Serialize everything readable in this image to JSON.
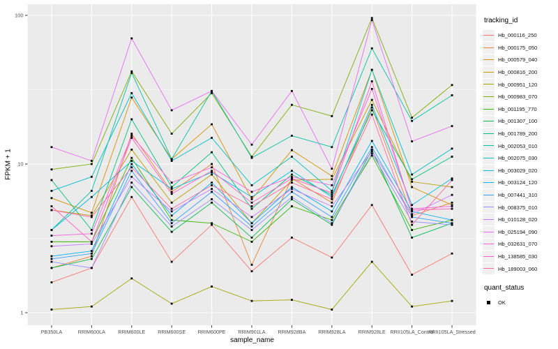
{
  "figure": {
    "background": "#ffffff",
    "panel_bg": "#ebebeb",
    "grid_color": "#ffffff",
    "tick_text_color": "#4d4d4d",
    "tick_mark_color": "#333333",
    "point_color": "#000000"
  },
  "axes": {
    "x_title": "sample_name",
    "y_title": "FPKM + 1",
    "y_tick_labels": [
      "1",
      "10",
      "100"
    ]
  },
  "legend": {
    "tracking_title": "tracking_id",
    "quant_title": "quant_status",
    "quant_items": [
      {
        "label": "OK",
        "shape": "square",
        "color": "#000000"
      }
    ]
  },
  "chart_data": {
    "type": "line",
    "title": "",
    "xlabel": "sample_name",
    "ylabel": "FPKM + 1",
    "yscale": "log10",
    "ylim": [
      0.95,
      120
    ],
    "yticks": [
      1,
      10,
      100
    ],
    "minor_gridlines": [
      3.1623,
      31.623
    ],
    "grid": true,
    "legend_position": "right",
    "point_marker": "black-square",
    "categories": [
      "PB350LA",
      "RRIM600LA",
      "RRIM600LE",
      "RRIM600SE",
      "RRIM600PE",
      "RRIM901LA",
      "RRIM928BA",
      "RRIM928LA",
      "RRIM928LE",
      "RRII105LA_Control",
      "RRII105LA_Stressed"
    ],
    "series": [
      {
        "name": "Hb_000116_250",
        "color": "#F8766D",
        "values": [
          1.6,
          2.0,
          6.0,
          2.2,
          3.9,
          1.9,
          3.2,
          2.35,
          5.3,
          1.8,
          2.5
        ]
      },
      {
        "name": "Hb_000175_050",
        "color": "#EA8331",
        "values": [
          2.0,
          2.4,
          16.0,
          6.5,
          10.0,
          2.1,
          8.0,
          5.5,
          24.0,
          4.5,
          5.5
        ]
      },
      {
        "name": "Hb_000579_040",
        "color": "#D89000",
        "values": [
          5.9,
          4.7,
          28.0,
          10.8,
          18.5,
          5.8,
          12.4,
          8.3,
          43.0,
          7.0,
          5.3
        ]
      },
      {
        "name": "Hb_000816_200",
        "color": "#C09B00",
        "values": [
          4.9,
          4.5,
          12.5,
          5.5,
          8.5,
          4.0,
          7.8,
          7.9,
          27.0,
          7.6,
          7.0
        ]
      },
      {
        "name": "Hb_000951_120",
        "color": "#A3A500",
        "values": [
          1.05,
          1.1,
          1.7,
          1.15,
          1.5,
          1.2,
          1.22,
          1.05,
          2.2,
          1.1,
          1.2
        ]
      },
      {
        "name": "Hb_000983_070",
        "color": "#7CAE00",
        "values": [
          9.2,
          10.0,
          42.0,
          16.0,
          30.0,
          11.2,
          25.0,
          21.0,
          96.0,
          20.5,
          34.0
        ]
      },
      {
        "name": "Hb_001195_770",
        "color": "#39B600",
        "values": [
          3.0,
          3.0,
          11.0,
          4.2,
          4.0,
          3.0,
          5.2,
          4.2,
          11.4,
          3.6,
          4.2
        ]
      },
      {
        "name": "Hb_001307_100",
        "color": "#00BB4E",
        "values": [
          2.0,
          2.3,
          7.0,
          3.5,
          5.5,
          3.2,
          5.8,
          3.9,
          12.5,
          3.2,
          4.0
        ]
      },
      {
        "name": "Hb_001789_200",
        "color": "#00BF7D",
        "values": [
          7.8,
          3.6,
          20.0,
          7.0,
          12.0,
          5.0,
          8.5,
          6.2,
          23.0,
          7.9,
          11.2
        ]
      },
      {
        "name": "Hb_002053_010",
        "color": "#00C1A3",
        "values": [
          3.6,
          6.6,
          41.0,
          10.8,
          31.0,
          11.0,
          15.5,
          13.0,
          60.0,
          19.5,
          29.0
        ]
      },
      {
        "name": "Hb_002075_030",
        "color": "#00BFC4",
        "values": [
          6.6,
          8.2,
          30.0,
          10.5,
          15.0,
          7.2,
          11.2,
          6.6,
          43.0,
          8.5,
          12.7
        ]
      },
      {
        "name": "Hb_003029_020",
        "color": "#00BAE0",
        "values": [
          3.6,
          6.0,
          10.5,
          6.8,
          8.8,
          6.0,
          9.0,
          6.0,
          25.0,
          5.3,
          8.0
        ]
      },
      {
        "name": "Hb_003124_120",
        "color": "#00B0F6",
        "values": [
          2.4,
          2.6,
          10.0,
          4.5,
          7.5,
          4.0,
          7.0,
          4.8,
          14.3,
          4.8,
          4.2
        ]
      },
      {
        "name": "Hb_007441_310",
        "color": "#35A2FF",
        "values": [
          2.3,
          2.5,
          9.0,
          4.0,
          6.5,
          3.8,
          6.5,
          4.4,
          13.0,
          4.4,
          4.0
        ]
      },
      {
        "name": "Hb_008375_010",
        "color": "#9590FF",
        "values": [
          2.2,
          2.0,
          7.5,
          3.8,
          5.8,
          3.6,
          6.0,
          4.0,
          11.8,
          4.1,
          3.9
        ]
      },
      {
        "name": "Hb_010128_020",
        "color": "#C77CFF",
        "values": [
          2.8,
          2.9,
          8.2,
          4.8,
          6.8,
          4.4,
          6.8,
          5.2,
          12.2,
          4.6,
          6.2
        ]
      },
      {
        "name": "Hb_025194_090",
        "color": "#E76BF3",
        "values": [
          13.0,
          10.5,
          70.0,
          23.0,
          31.0,
          13.5,
          31.0,
          9.3,
          93.0,
          14.2,
          18.0
        ]
      },
      {
        "name": "Hb_032631_070",
        "color": "#FA62DB",
        "values": [
          3.3,
          3.4,
          15.5,
          7.5,
          9.5,
          6.5,
          8.2,
          7.2,
          32.0,
          5.0,
          5.2
        ]
      },
      {
        "name": "Hb_138585_030",
        "color": "#FF61C3",
        "values": [
          5.2,
          3.0,
          15.0,
          6.3,
          9.0,
          5.5,
          8.0,
          6.4,
          36.0,
          4.9,
          5.0
        ]
      },
      {
        "name": "Hb_189003_060",
        "color": "#FF67A4",
        "values": [
          4.9,
          4.4,
          9.5,
          5.0,
          7.2,
          5.2,
          7.5,
          5.8,
          21.5,
          3.9,
          7.8
        ]
      }
    ]
  }
}
